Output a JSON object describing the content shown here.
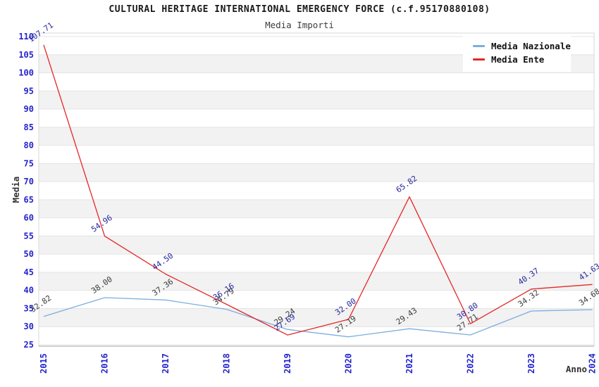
{
  "title": "CULTURAL HERITAGE INTERNATIONAL EMERGENCY FORCE (c.f.95170880108)",
  "subtitle": "Media Importi",
  "chart_data": {
    "type": "line",
    "x": [
      2015,
      2016,
      2017,
      2018,
      2019,
      2020,
      2021,
      2022,
      2023,
      2024
    ],
    "xlabel": "Anno",
    "ylabel": "Media",
    "ylim": [
      25,
      110
    ],
    "ytick_step": 5,
    "grid": "horizontal-bands-alternating",
    "legend_position": "top-right",
    "series": [
      {
        "name": "Media Nazionale",
        "color": "#7caede",
        "label_color": "#3a3a3a",
        "values": [
          32.82,
          38.0,
          37.36,
          34.79,
          29.24,
          27.19,
          29.43,
          27.71,
          34.32,
          34.68
        ]
      },
      {
        "name": "Media Ente",
        "color": "#e62626",
        "label_color": "#26269c",
        "values": [
          107.71,
          54.96,
          44.5,
          36.16,
          27.69,
          32.0,
          65.82,
          30.8,
          40.37,
          41.63
        ]
      }
    ]
  },
  "colors": {
    "tick_label": "#2424cc",
    "grid_line": "#e4e4e4",
    "band_fill": "#f2f2f2",
    "band_fill_alt": "#ffffff",
    "plot_border": "#d9d9d9",
    "bottom_axis": "#b5b5b5",
    "axis_label": "#333333"
  }
}
